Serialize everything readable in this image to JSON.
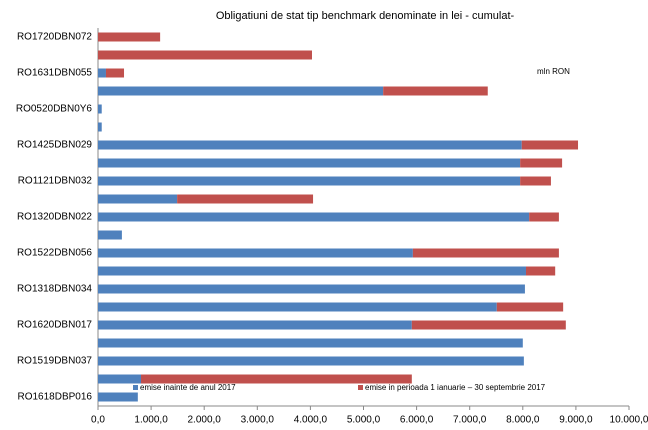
{
  "chart_data": {
    "type": "stacked_barh",
    "title": "Obligatiuni de stat tip benchmark denominate in lei - cumulat-",
    "annotation": "mln RON",
    "categories": [
      "RO1720DBN072",
      null,
      "RO1631DBN055",
      null,
      "RO0520DBN0Y6",
      null,
      "RO1425DBN029",
      null,
      "RO1121DBN032",
      null,
      "RO1320DBN022",
      null,
      "RO1522DBN056",
      null,
      "RO1318DBN034",
      null,
      "RO1620DBN017",
      null,
      "RO1519DBN037",
      null,
      "RO1618DBP016"
    ],
    "series": [
      {
        "name": "emise inainte de anul 2017",
        "color": "#4f81bd",
        "values": [
          0,
          0,
          150,
          5370,
          70,
          70,
          7980,
          7950,
          7950,
          1490,
          8120,
          450,
          5930,
          8060,
          8040,
          7510,
          5910,
          8000,
          8020,
          810,
          750
        ]
      },
      {
        "name": "emise in perioada 1 ianuarie – 30 septembrie 2017",
        "color": "#c0504d",
        "values": [
          1170,
          4030,
          340,
          1970,
          0,
          0,
          1060,
          790,
          580,
          2560,
          560,
          0,
          2750,
          550,
          0,
          1250,
          2900,
          0,
          0,
          5100,
          0
        ]
      }
    ],
    "xlim": [
      0,
      10000
    ],
    "xticks": [
      {
        "value": 0,
        "label": "0,0"
      },
      {
        "value": 1000,
        "label": "1.000,0"
      },
      {
        "value": 2000,
        "label": "2.000,0"
      },
      {
        "value": 3000,
        "label": "3.000,0"
      },
      {
        "value": 4000,
        "label": "4.000,0"
      },
      {
        "value": 5000,
        "label": "5.000,0"
      },
      {
        "value": 6000,
        "label": "6.000,0"
      },
      {
        "value": 7000,
        "label": "7.000,0"
      },
      {
        "value": 8000,
        "label": "8.000,0"
      },
      {
        "value": 9000,
        "label": "9.000,0"
      },
      {
        "value": 10000,
        "label": "10.000,0"
      }
    ]
  }
}
